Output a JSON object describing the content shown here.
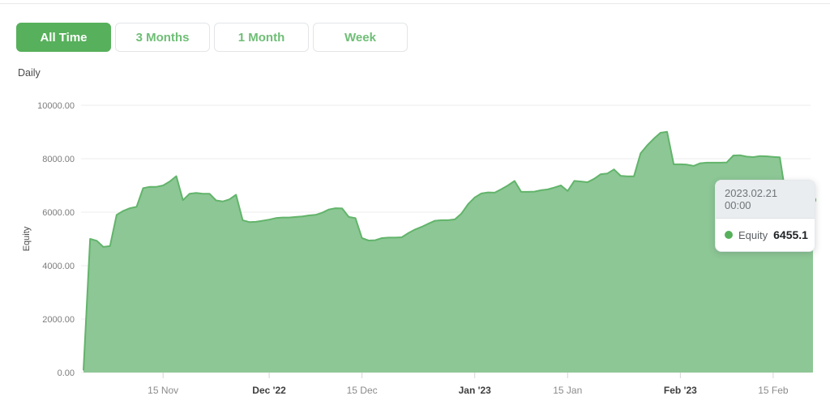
{
  "toolbar": {
    "buttons": [
      {
        "label": "All Time",
        "active": true
      },
      {
        "label": "3 Months",
        "active": false
      },
      {
        "label": "1 Month",
        "active": false
      },
      {
        "label": "Week",
        "active": false
      }
    ]
  },
  "frequency_label": "Daily",
  "tooltip": {
    "date": "2023.02.21 00:00",
    "series_name": "Equity",
    "value": "6455.1"
  },
  "colors": {
    "accent_green": "#57b05b",
    "area_fill": "#8dc795",
    "line_stroke": "#62b46b",
    "grid": "#ececec",
    "tick_mark": "#d5d5d5"
  },
  "chart_data": {
    "type": "area",
    "title": "",
    "xlabel": "",
    "ylabel": "Equity",
    "ylim": [
      0,
      10000
    ],
    "grid": true,
    "legend": "none",
    "frequency": "daily",
    "start_date": "2022-11-03",
    "end_date": "2023-02-21",
    "y_ticks": [
      {
        "value": 0,
        "label": "0.00"
      },
      {
        "value": 2000,
        "label": "2000.00"
      },
      {
        "value": 4000,
        "label": "4000.00"
      },
      {
        "value": 6000,
        "label": "6000.00"
      },
      {
        "value": 8000,
        "label": "8000.00"
      },
      {
        "value": 10000,
        "label": "10000.00"
      }
    ],
    "x_ticks": [
      {
        "day": 12,
        "label": "15 Nov",
        "bold": false
      },
      {
        "day": 28,
        "label": "Dec '22",
        "bold": true
      },
      {
        "day": 42,
        "label": "15 Dec",
        "bold": false
      },
      {
        "day": 59,
        "label": "Jan '23",
        "bold": true
      },
      {
        "day": 73,
        "label": "15 Jan",
        "bold": false
      },
      {
        "day": 90,
        "label": "Feb '23",
        "bold": true
      },
      {
        "day": 104,
        "label": "15 Feb",
        "bold": false
      }
    ],
    "series": [
      {
        "name": "Equity",
        "values": [
          80,
          5000,
          4930,
          4700,
          4730,
          5900,
          6050,
          6150,
          6200,
          6900,
          6950,
          6950,
          7000,
          7150,
          7350,
          6450,
          6690,
          6720,
          6690,
          6690,
          6440,
          6400,
          6480,
          6650,
          5700,
          5630,
          5640,
          5680,
          5720,
          5780,
          5800,
          5800,
          5820,
          5840,
          5880,
          5900,
          5980,
          6100,
          6150,
          6140,
          5820,
          5780,
          5030,
          4940,
          4950,
          5030,
          5050,
          5050,
          5060,
          5220,
          5350,
          5450,
          5570,
          5680,
          5700,
          5700,
          5730,
          5950,
          6300,
          6550,
          6700,
          6740,
          6730,
          6860,
          7000,
          7170,
          6760,
          6760,
          6770,
          6820,
          6850,
          6920,
          7000,
          6790,
          7170,
          7150,
          7120,
          7250,
          7420,
          7450,
          7600,
          7360,
          7340,
          7340,
          8200,
          8500,
          8750,
          8970,
          9010,
          7790,
          7790,
          7780,
          7730,
          7830,
          7850,
          7850,
          7850,
          7860,
          8120,
          8130,
          8080,
          8060,
          8100,
          8090,
          8070,
          8050,
          6455.1,
          6455.1,
          6455.1,
          6455.1,
          6455.1
        ]
      }
    ],
    "hover_point": {
      "date": "2023.02.21 00:00",
      "value": 6455.1
    }
  }
}
